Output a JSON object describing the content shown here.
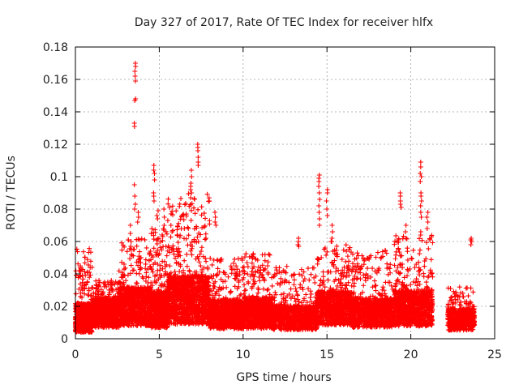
{
  "chart_data": {
    "type": "scatter",
    "title": "Day 327 of 2017, Rate Of TEC Index for receiver hlfx",
    "xlabel": "GPS time / hours",
    "ylabel": "ROTI / TECUs",
    "xlim": [
      0,
      25
    ],
    "ylim": [
      0,
      0.18
    ],
    "xticks": [
      "0",
      "5",
      "10",
      "15",
      "20",
      "25"
    ],
    "yticks": [
      "0",
      "0.02",
      "0.04",
      "0.06",
      "0.08",
      "0.1",
      "0.12",
      "0.14",
      "0.16",
      "0.18"
    ],
    "grid": true,
    "marker": "plus",
    "color": "#ff0000",
    "segments": [
      {
        "x": [
          0.0,
          1.0
        ],
        "base": 0.013,
        "spread": 0.012,
        "max": 0.056,
        "n": 700
      },
      {
        "x": [
          1.0,
          2.6
        ],
        "base": 0.016,
        "spread": 0.012,
        "max": 0.036,
        "n": 800
      },
      {
        "x": [
          2.6,
          4.5
        ],
        "base": 0.02,
        "spread": 0.016,
        "max": 0.062,
        "n": 900
      },
      {
        "x": [
          4.5,
          5.5
        ],
        "base": 0.018,
        "spread": 0.015,
        "max": 0.068,
        "n": 600
      },
      {
        "x": [
          5.5,
          8.0
        ],
        "base": 0.024,
        "spread": 0.02,
        "max": 0.09,
        "n": 1300
      },
      {
        "x": [
          8.0,
          10.0
        ],
        "base": 0.015,
        "spread": 0.012,
        "max": 0.05,
        "n": 900
      },
      {
        "x": [
          10.0,
          11.8
        ],
        "base": 0.016,
        "spread": 0.013,
        "max": 0.053,
        "n": 800
      },
      {
        "x": [
          11.8,
          14.4
        ],
        "base": 0.013,
        "spread": 0.01,
        "max": 0.045,
        "n": 900
      },
      {
        "x": [
          14.4,
          16.5
        ],
        "base": 0.019,
        "spread": 0.014,
        "max": 0.06,
        "n": 900
      },
      {
        "x": [
          16.5,
          19.0
        ],
        "base": 0.016,
        "spread": 0.012,
        "max": 0.055,
        "n": 900
      },
      {
        "x": [
          19.0,
          21.3
        ],
        "base": 0.019,
        "spread": 0.015,
        "max": 0.064,
        "n": 1000
      },
      {
        "x": [
          22.2,
          23.8
        ],
        "base": 0.012,
        "spread": 0.009,
        "max": 0.032,
        "n": 600
      }
    ],
    "peaks": [
      {
        "x": 3.55,
        "y": [
          0.133,
          0.131,
          0.148,
          0.147,
          0.159,
          0.162,
          0.165,
          0.168,
          0.17,
          0.095,
          0.088,
          0.083,
          0.08
        ]
      },
      {
        "x": 3.3,
        "y": [
          0.07,
          0.065,
          0.06,
          0.057,
          0.055
        ]
      },
      {
        "x": 3.75,
        "y": [
          0.078,
          0.075,
          0.072
        ]
      },
      {
        "x": 4.7,
        "y": [
          0.107,
          0.104,
          0.102,
          0.098,
          0.09,
          0.088,
          0.085
        ]
      },
      {
        "x": 4.9,
        "y": [
          0.079,
          0.076,
          0.074
        ]
      },
      {
        "x": 5.3,
        "y": [
          0.08,
          0.075,
          0.07,
          0.067
        ]
      },
      {
        "x": 6.9,
        "y": [
          0.104,
          0.1,
          0.096,
          0.094,
          0.092,
          0.09,
          0.087
        ]
      },
      {
        "x": 7.3,
        "y": [
          0.12,
          0.118,
          0.116,
          0.112,
          0.109,
          0.107
        ]
      },
      {
        "x": 8.35,
        "y": [
          0.078,
          0.075,
          0.072,
          0.07
        ]
      },
      {
        "x": 13.3,
        "y": [
          0.062,
          0.06,
          0.058,
          0.057
        ]
      },
      {
        "x": 14.55,
        "y": [
          0.101,
          0.099,
          0.097,
          0.094,
          0.09,
          0.086,
          0.082,
          0.078,
          0.074,
          0.07
        ]
      },
      {
        "x": 15.0,
        "y": [
          0.092,
          0.09,
          0.085,
          0.08,
          0.076
        ]
      },
      {
        "x": 15.3,
        "y": [
          0.07,
          0.066,
          0.062,
          0.06
        ]
      },
      {
        "x": 19.4,
        "y": [
          0.09,
          0.088,
          0.085,
          0.083,
          0.081
        ]
      },
      {
        "x": 19.7,
        "y": [
          0.07,
          0.066,
          0.062
        ]
      },
      {
        "x": 20.6,
        "y": [
          0.109,
          0.106,
          0.102,
          0.1,
          0.097,
          0.09,
          0.088,
          0.085,
          0.082,
          0.078,
          0.075,
          0.066,
          0.064
        ]
      },
      {
        "x": 21.0,
        "y": [
          0.078,
          0.075,
          0.072,
          0.068
        ]
      },
      {
        "x": 23.6,
        "y": [
          0.062,
          0.061,
          0.06,
          0.058
        ]
      }
    ]
  }
}
